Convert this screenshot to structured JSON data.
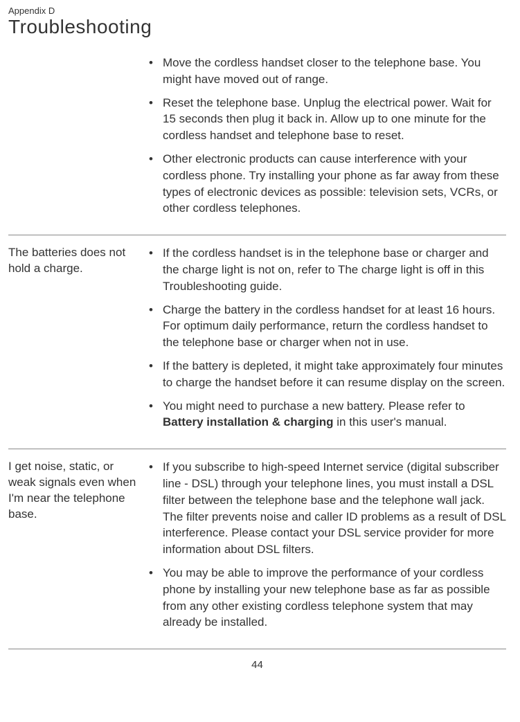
{
  "header": {
    "appendix": "Appendix D",
    "title": "Troubleshooting"
  },
  "sections": [
    {
      "heading": "",
      "items": [
        "Move the cordless handset closer to the telephone base. You might have moved out of range.",
        "Reset the telephone base. Unplug the electrical power. Wait for 15 seconds then plug it back in. Allow up to one minute for the cordless handset and telephone base to reset.",
        "Other electronic products can cause interference with your cordless phone. Try installing your phone as far away from these types of electronic devices as possible: television sets, VCRs, or other cordless telephones."
      ]
    },
    {
      "heading": "The batteries does not hold a charge.",
      "items": [
        "If the cordless handset is in the telephone base or charger and the charge light is not on, refer to The charge light is off in this Troubleshooting guide.",
        "Charge the battery in the cordless handset for at least 16 hours. For optimum daily performance, return the cordless handset to the telephone base or charger when not in use.",
        "If the battery is depleted, it might take approximately four minutes to charge the handset before it can resume display on the screen.",
        {
          "pre": "You might need to purchase a new battery. Please refer to ",
          "bold": "Battery installation & charging",
          "post": " in this user's manual."
        }
      ]
    },
    {
      "heading": "I get noise, static, or weak signals even when I'm near the telephone base.",
      "items": [
        "If you subscribe to high-speed Internet service (digital subscriber line - DSL) through your telephone lines, you must install a DSL filter between the telephone base and the telephone wall jack. The filter prevents noise and caller ID problems as a result of DSL interference. Please contact your DSL service provider for more information about DSL filters.",
        "You may be able to improve the performance of your cordless phone by installing your new telephone base as far as possible from any other existing cordless telephone system that may already be installed."
      ]
    }
  ],
  "pageNumber": "44"
}
